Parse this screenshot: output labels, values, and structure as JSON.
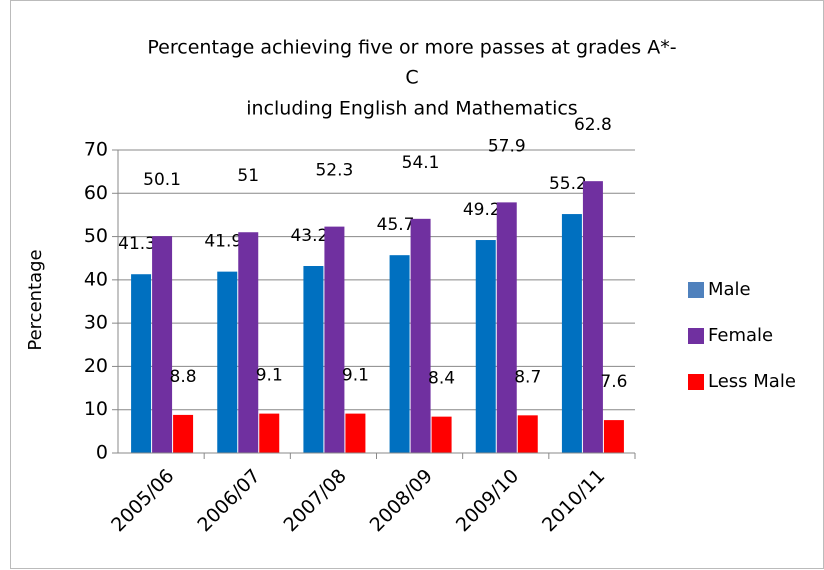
{
  "chart_data": {
    "type": "bar",
    "title": [
      "Percentage achieving five or more passes at  grades A*-",
      "C",
      "including English and Mathematics"
    ],
    "y_label": "Percentage",
    "categories": [
      "2005/06",
      "2006/07",
      "2007/08",
      "2008/09",
      "2009/10",
      "2010/11"
    ],
    "series": [
      {
        "name": "Male",
        "color": "#0070c0",
        "legend_color": "#4f81bd",
        "values": [
          41.3,
          41.9,
          43.2,
          45.7,
          49.2,
          55.2
        ]
      },
      {
        "name": "Female",
        "color": "#7030a0",
        "legend_color": "#7030a0",
        "values": [
          50.1,
          51,
          52.3,
          54.1,
          57.9,
          62.8
        ]
      },
      {
        "name": "Less Male",
        "color": "#ff0000",
        "legend_color": "#ff0000",
        "values": [
          8.8,
          9.1,
          9.1,
          8.4,
          8.7,
          7.6
        ]
      }
    ],
    "ylim": [
      0,
      70
    ],
    "yticks": [
      0,
      10,
      20,
      30,
      40,
      50,
      60,
      70
    ],
    "grid": true,
    "legend": "right"
  }
}
